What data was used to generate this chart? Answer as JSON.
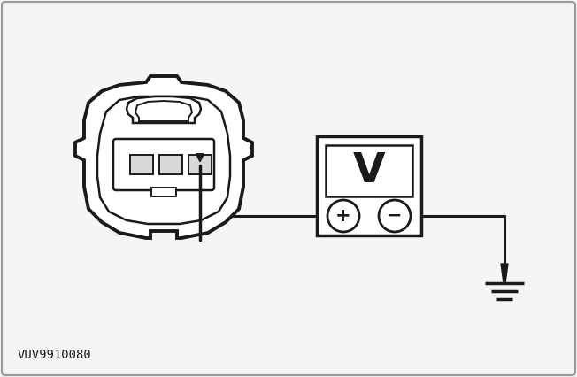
{
  "background_color": "#f5f5f5",
  "border_color": "#888888",
  "line_color": "#1a1a1a",
  "label_text": "VUV9910080",
  "label_fontsize": 10,
  "voltmeter_label": "V",
  "plus_label": "+",
  "minus_label": "−"
}
